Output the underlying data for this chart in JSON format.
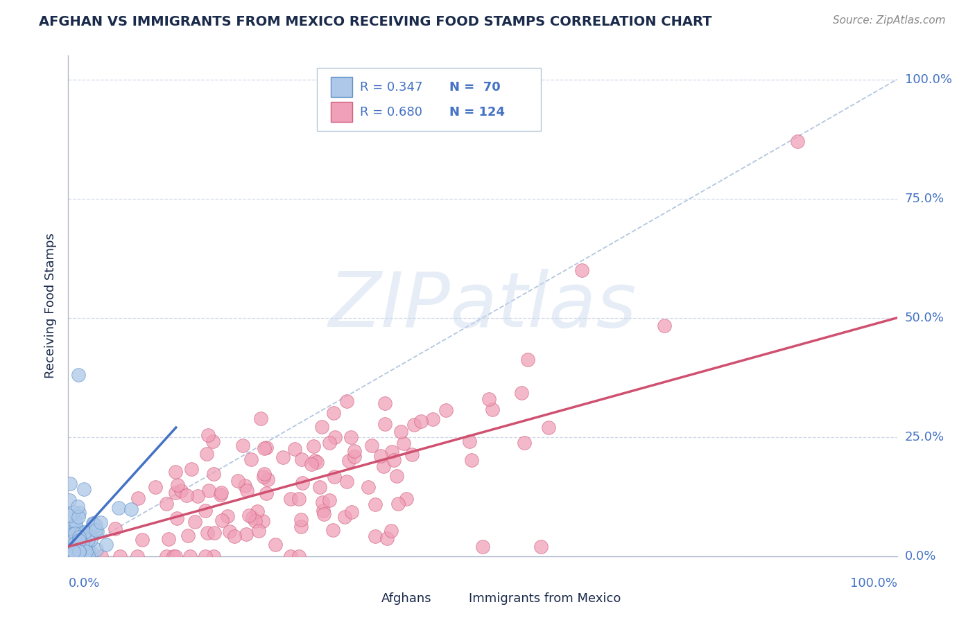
{
  "title": "AFGHAN VS IMMIGRANTS FROM MEXICO RECEIVING FOOD STAMPS CORRELATION CHART",
  "source": "Source: ZipAtlas.com",
  "ylabel": "Receiving Food Stamps",
  "xlim": [
    0.0,
    1.0
  ],
  "ylim": [
    0.0,
    1.05
  ],
  "ytick_labels": [
    "0.0%",
    "25.0%",
    "50.0%",
    "75.0%",
    "100.0%"
  ],
  "ytick_values": [
    0.0,
    0.25,
    0.5,
    0.75,
    1.0
  ],
  "afghan_R": 0.347,
  "afghan_N": 70,
  "mexico_R": 0.68,
  "mexico_N": 124,
  "afghan_color": "#adc8e8",
  "afghan_edge_color": "#6090c8",
  "afghan_line_color": "#4472c4",
  "mexico_color": "#f0a0b8",
  "mexico_edge_color": "#d06080",
  "mexico_line_color": "#d05070",
  "diag_color": "#a0b8d8",
  "watermark_color": "#c8d8ec",
  "background_color": "#ffffff",
  "grid_color": "#d0d8e8",
  "title_color": "#1a2a4a",
  "source_color": "#888888",
  "axis_label_color": "#4472c4"
}
